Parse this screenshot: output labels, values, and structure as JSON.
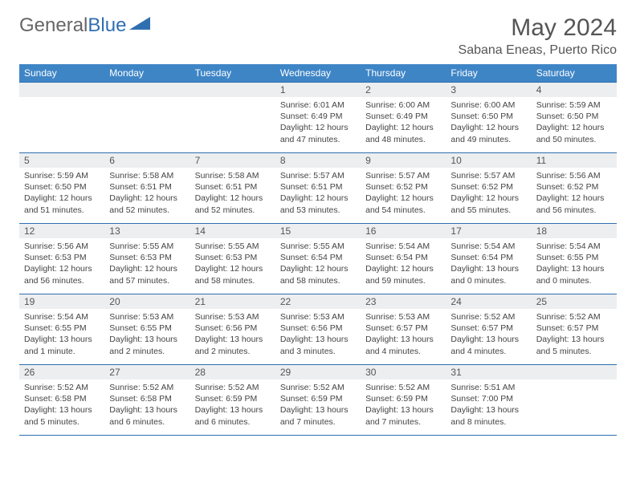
{
  "logo": {
    "text1": "General",
    "text2": "Blue"
  },
  "title": "May 2024",
  "location": "Sabana Eneas, Puerto Rico",
  "colors": {
    "header_bg": "#3e85c6",
    "header_text": "#ffffff",
    "border": "#2f6fb0",
    "daynum_bg": "#eceef0",
    "body_text": "#444444"
  },
  "weekdays": [
    "Sunday",
    "Monday",
    "Tuesday",
    "Wednesday",
    "Thursday",
    "Friday",
    "Saturday"
  ],
  "weeks": [
    [
      {
        "n": "",
        "sr": "",
        "ss": "",
        "dl": ""
      },
      {
        "n": "",
        "sr": "",
        "ss": "",
        "dl": ""
      },
      {
        "n": "",
        "sr": "",
        "ss": "",
        "dl": ""
      },
      {
        "n": "1",
        "sr": "6:01 AM",
        "ss": "6:49 PM",
        "dl": "12 hours and 47 minutes."
      },
      {
        "n": "2",
        "sr": "6:00 AM",
        "ss": "6:49 PM",
        "dl": "12 hours and 48 minutes."
      },
      {
        "n": "3",
        "sr": "6:00 AM",
        "ss": "6:50 PM",
        "dl": "12 hours and 49 minutes."
      },
      {
        "n": "4",
        "sr": "5:59 AM",
        "ss": "6:50 PM",
        "dl": "12 hours and 50 minutes."
      }
    ],
    [
      {
        "n": "5",
        "sr": "5:59 AM",
        "ss": "6:50 PM",
        "dl": "12 hours and 51 minutes."
      },
      {
        "n": "6",
        "sr": "5:58 AM",
        "ss": "6:51 PM",
        "dl": "12 hours and 52 minutes."
      },
      {
        "n": "7",
        "sr": "5:58 AM",
        "ss": "6:51 PM",
        "dl": "12 hours and 52 minutes."
      },
      {
        "n": "8",
        "sr": "5:57 AM",
        "ss": "6:51 PM",
        "dl": "12 hours and 53 minutes."
      },
      {
        "n": "9",
        "sr": "5:57 AM",
        "ss": "6:52 PM",
        "dl": "12 hours and 54 minutes."
      },
      {
        "n": "10",
        "sr": "5:57 AM",
        "ss": "6:52 PM",
        "dl": "12 hours and 55 minutes."
      },
      {
        "n": "11",
        "sr": "5:56 AM",
        "ss": "6:52 PM",
        "dl": "12 hours and 56 minutes."
      }
    ],
    [
      {
        "n": "12",
        "sr": "5:56 AM",
        "ss": "6:53 PM",
        "dl": "12 hours and 56 minutes."
      },
      {
        "n": "13",
        "sr": "5:55 AM",
        "ss": "6:53 PM",
        "dl": "12 hours and 57 minutes."
      },
      {
        "n": "14",
        "sr": "5:55 AM",
        "ss": "6:53 PM",
        "dl": "12 hours and 58 minutes."
      },
      {
        "n": "15",
        "sr": "5:55 AM",
        "ss": "6:54 PM",
        "dl": "12 hours and 58 minutes."
      },
      {
        "n": "16",
        "sr": "5:54 AM",
        "ss": "6:54 PM",
        "dl": "12 hours and 59 minutes."
      },
      {
        "n": "17",
        "sr": "5:54 AM",
        "ss": "6:54 PM",
        "dl": "13 hours and 0 minutes."
      },
      {
        "n": "18",
        "sr": "5:54 AM",
        "ss": "6:55 PM",
        "dl": "13 hours and 0 minutes."
      }
    ],
    [
      {
        "n": "19",
        "sr": "5:54 AM",
        "ss": "6:55 PM",
        "dl": "13 hours and 1 minute."
      },
      {
        "n": "20",
        "sr": "5:53 AM",
        "ss": "6:55 PM",
        "dl": "13 hours and 2 minutes."
      },
      {
        "n": "21",
        "sr": "5:53 AM",
        "ss": "6:56 PM",
        "dl": "13 hours and 2 minutes."
      },
      {
        "n": "22",
        "sr": "5:53 AM",
        "ss": "6:56 PM",
        "dl": "13 hours and 3 minutes."
      },
      {
        "n": "23",
        "sr": "5:53 AM",
        "ss": "6:57 PM",
        "dl": "13 hours and 4 minutes."
      },
      {
        "n": "24",
        "sr": "5:52 AM",
        "ss": "6:57 PM",
        "dl": "13 hours and 4 minutes."
      },
      {
        "n": "25",
        "sr": "5:52 AM",
        "ss": "6:57 PM",
        "dl": "13 hours and 5 minutes."
      }
    ],
    [
      {
        "n": "26",
        "sr": "5:52 AM",
        "ss": "6:58 PM",
        "dl": "13 hours and 5 minutes."
      },
      {
        "n": "27",
        "sr": "5:52 AM",
        "ss": "6:58 PM",
        "dl": "13 hours and 6 minutes."
      },
      {
        "n": "28",
        "sr": "5:52 AM",
        "ss": "6:59 PM",
        "dl": "13 hours and 6 minutes."
      },
      {
        "n": "29",
        "sr": "5:52 AM",
        "ss": "6:59 PM",
        "dl": "13 hours and 7 minutes."
      },
      {
        "n": "30",
        "sr": "5:52 AM",
        "ss": "6:59 PM",
        "dl": "13 hours and 7 minutes."
      },
      {
        "n": "31",
        "sr": "5:51 AM",
        "ss": "7:00 PM",
        "dl": "13 hours and 8 minutes."
      },
      {
        "n": "",
        "sr": "",
        "ss": "",
        "dl": ""
      }
    ]
  ],
  "labels": {
    "sunrise": "Sunrise: ",
    "sunset": "Sunset: ",
    "daylight": "Daylight: "
  }
}
